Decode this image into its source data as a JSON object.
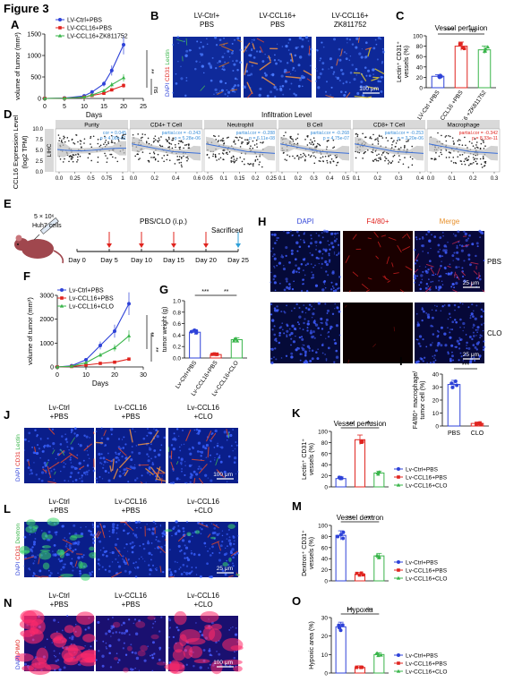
{
  "figure_title": "Figure 3",
  "colors": {
    "blue": "#2e42d8",
    "red": "#e0241f",
    "green": "#39b54a",
    "grey": "#888888"
  },
  "panels": {
    "A": {
      "letter": "A",
      "ylabel": "volume of tumor (mm³)",
      "xlabel": "Days",
      "sig": [
        "**",
        "ns"
      ],
      "legend": [
        "LV-Ctrl+PBS",
        "LV-CCL16+PBS",
        "LV-CCL16+ZK811752"
      ]
    },
    "B": {
      "letter": "B",
      "columns": [
        "LV-Ctrl+\nPBS",
        "LV-CCL16+\nPBS",
        "LV-CCL16+\nZK811752"
      ],
      "stain": [
        "DAPI",
        "CD31",
        "Lectin"
      ],
      "scale": "100 μm"
    },
    "C": {
      "letter": "C",
      "title": "Vessel perfusion",
      "ylabel": "Lectin⁺ CD31⁺ vessels (%)",
      "sig": [
        "****",
        "ns"
      ],
      "groups": [
        "LV-Ctrl +PBS",
        "LV-CCL16 +PBS",
        "LV-CCL16 +ZK811752"
      ]
    },
    "D": {
      "letter": "D",
      "header": "Infiltration Level",
      "ylabel": "CCL16 Expression Level (log2 TPM)",
      "side": "LIHC",
      "facets": [
        {
          "name": "Purity",
          "stat1": "cor = 0.045",
          "stat2": "p = 4.08e-01",
          "red": false
        },
        {
          "name": "CD4+ T Cell",
          "stat1": "partial.cor = -0.243",
          "stat2": "p = 5.28e-06",
          "red": false
        },
        {
          "name": "Neutrophil",
          "stat1": "partial.cor = -0.288",
          "stat2": "p = 6.11e-08",
          "red": false
        },
        {
          "name": "B Cell",
          "stat1": "partial.cor = -0.268",
          "stat2": "p = 4.75e-07",
          "red": false
        },
        {
          "name": "CD8+ T Cell",
          "stat1": "partial.cor = -0.253",
          "stat2": "p = 3.20e-06",
          "red": false
        },
        {
          "name": "Macrophage",
          "stat1": "partial.cor = -0.342",
          "stat2": "p = 8.33e-11",
          "red": true
        }
      ]
    },
    "E": {
      "letter": "E",
      "cells": "5 × 10⁶",
      "cellname": "Huh7 cells",
      "treat": "PBS/CLO (i.p.)",
      "sacrificed": "Sacrificed",
      "days": [
        "Day 0",
        "Day 5",
        "Day 10",
        "Day 15",
        "Day 20",
        "Day 25"
      ]
    },
    "F": {
      "letter": "F",
      "ylabel": "volume of tumor (mm³)",
      "xlabel": "Days",
      "sig": [
        "**",
        "**"
      ],
      "legend": [
        "Lv-Ctrl+PBS",
        "Lv-CCL16+PBS",
        "Lv-CCL16+CLO"
      ]
    },
    "G": {
      "letter": "G",
      "ylabel": "tumor weight (g)",
      "sig": [
        "***",
        "**"
      ],
      "groups": [
        "Lv-Ctrl+PBS",
        "Lv-CCL16+PBS",
        "Lv-CCL16+CLO"
      ]
    },
    "H": {
      "letter": "H",
      "columns": [
        "DAPI",
        "F4/80+",
        "Merge"
      ],
      "rows": [
        "PBS",
        "CLO"
      ],
      "scale": "25 μm"
    },
    "I": {
      "letter": "I",
      "ylabel": "F4/80⁺ macrophage/ tumor cell (%)",
      "sig": "***",
      "groups": [
        "PBS",
        "CLO"
      ]
    },
    "J": {
      "letter": "J",
      "columns": [
        "Lv-Ctrl\n+PBS",
        "Lv-CCL16\n+PBS",
        "Lv-CCL16\n+CLO"
      ],
      "stain": [
        "DAPI",
        "CD31",
        "Lectin"
      ],
      "scale": "100 μm"
    },
    "K": {
      "letter": "K",
      "title": "Vessel perfusion",
      "ylabel": "Lectin⁺ CD31⁺ vessels (%)",
      "sig": [
        "***",
        "***"
      ]
    },
    "L": {
      "letter": "L",
      "columns": [
        "Lv-Ctrl\n+PBS",
        "Lv-CCL16\n+PBS",
        "Lv-CCL16\n+CLO"
      ],
      "stain": [
        "DAPI",
        "CD31",
        "Dextron"
      ],
      "scale": "25 μm"
    },
    "M": {
      "letter": "M",
      "title": "Vessel dextron",
      "ylabel": "Dextron⁺ CD31⁺ vessels (%)",
      "sig": [
        "***",
        "***"
      ]
    },
    "N": {
      "letter": "N",
      "columns": [
        "Lv-Ctrl\n+PBS",
        "Lv-CCL16\n+PBS",
        "Lv-CCL16\n+CLO"
      ],
      "stain": [
        "DAPI",
        "PIMO"
      ],
      "scale": "100 μm"
    },
    "O": {
      "letter": "O",
      "title": "Hypoxia",
      "ylabel": "Hypoxic area (%)",
      "sig": [
        "***",
        "***"
      ]
    },
    "legend3": [
      "Lv-Ctrl+PBS",
      "Lv-CCL16+PBS",
      "Lv-CCL16+CLO"
    ]
  },
  "chart_data": [
    {
      "id": "A",
      "type": "line",
      "x": [
        0,
        5,
        10,
        12,
        15,
        17,
        20
      ],
      "series": [
        {
          "name": "LV-Ctrl+PBS",
          "values": [
            0,
            10,
            60,
            150,
            340,
            650,
            1250
          ]
        },
        {
          "name": "LV-CCL16+PBS",
          "values": [
            0,
            5,
            30,
            70,
            120,
            200,
            300
          ]
        },
        {
          "name": "LV-CCL16+ZK811752",
          "values": [
            0,
            5,
            30,
            80,
            180,
            320,
            480
          ]
        }
      ],
      "xlim": [
        0,
        25
      ],
      "ylim": [
        0,
        1500
      ],
      "yticks": [
        0,
        500,
        1000,
        1500
      ],
      "xticks": [
        0,
        5,
        10,
        15,
        20,
        25
      ]
    },
    {
      "id": "C",
      "type": "bar",
      "categories": [
        "LV-Ctrl +PBS",
        "LV-CCL16 +PBS",
        "LV-CCL16 +ZK811752"
      ],
      "values": [
        22,
        80,
        73
      ],
      "ylim": [
        0,
        100
      ],
      "yticks": [
        0,
        20,
        40,
        60,
        80,
        100
      ]
    },
    {
      "id": "F",
      "type": "line",
      "x": [
        0,
        5,
        10,
        15,
        20,
        25
      ],
      "series": [
        {
          "name": "Lv-Ctrl+PBS",
          "values": [
            0,
            50,
            300,
            900,
            1500,
            2650
          ]
        },
        {
          "name": "Lv-CCL16+PBS",
          "values": [
            0,
            20,
            80,
            150,
            200,
            330
          ]
        },
        {
          "name": "Lv-CCL16+CLO",
          "values": [
            0,
            30,
            180,
            500,
            800,
            1300
          ]
        }
      ],
      "xlim": [
        0,
        30
      ],
      "ylim": [
        0,
        3000
      ],
      "yticks": [
        0,
        1000,
        2000,
        3000
      ],
      "xticks": [
        0,
        10,
        20,
        30
      ]
    },
    {
      "id": "G",
      "type": "bar",
      "categories": [
        "Lv-Ctrl+PBS",
        "Lv-CCL16+PBS",
        "Lv-CCL16+CLO"
      ],
      "values": [
        0.45,
        0.06,
        0.32
      ],
      "ylim": [
        0,
        1.0
      ],
      "yticks": [
        0.0,
        0.2,
        0.4,
        0.6,
        0.8,
        1.0
      ]
    },
    {
      "id": "I",
      "type": "bar",
      "categories": [
        "PBS",
        "CLO"
      ],
      "values": [
        32,
        2
      ],
      "ylim": [
        0,
        40
      ],
      "yticks": [
        0,
        10,
        20,
        30,
        40
      ]
    },
    {
      "id": "K",
      "type": "bar",
      "categories": [
        "Lv-Ctrl+PBS",
        "Lv-CCL16+PBS",
        "Lv-CCL16+CLO"
      ],
      "values": [
        15,
        85,
        25
      ],
      "ylim": [
        0,
        100
      ],
      "yticks": [
        0,
        20,
        40,
        60,
        80,
        100
      ]
    },
    {
      "id": "M",
      "type": "bar",
      "categories": [
        "Lv-Ctrl+PBS",
        "Lv-CCL16+PBS",
        "Lv-CCL16+CLO"
      ],
      "values": [
        82,
        12,
        45
      ],
      "ylim": [
        0,
        100
      ],
      "yticks": [
        0,
        20,
        40,
        60,
        80,
        100
      ]
    },
    {
      "id": "O",
      "type": "bar",
      "categories": [
        "Lv-Ctrl+PBS",
        "Lv-CCL16+PBS",
        "Lv-CCL16+CLO"
      ],
      "values": [
        25,
        3,
        10
      ],
      "ylim": [
        0,
        30
      ],
      "yticks": [
        0,
        10,
        20,
        30
      ]
    },
    {
      "id": "D",
      "type": "scatter",
      "facets": [
        "Purity",
        "CD4+ T Cell",
        "Neutrophil",
        "B Cell",
        "CD8+ T Cell",
        "Macrophage"
      ],
      "xticks": [
        [
          0.0,
          0.25,
          0.5,
          0.75,
          1.0
        ],
        [
          0.0,
          0.2,
          0.4,
          0.6
        ],
        [
          0.05,
          0.1,
          0.15,
          0.2,
          0.25
        ],
        [
          0.1,
          0.2,
          0.3,
          0.4,
          0.5
        ],
        [
          0.1,
          0.2,
          0.3,
          0.4
        ],
        [
          0.0,
          0.1,
          0.2,
          0.3
        ]
      ],
      "yticks": [
        0.0,
        2.5,
        5.0,
        7.5,
        10.0
      ],
      "ylim": [
        0,
        10
      ]
    }
  ]
}
